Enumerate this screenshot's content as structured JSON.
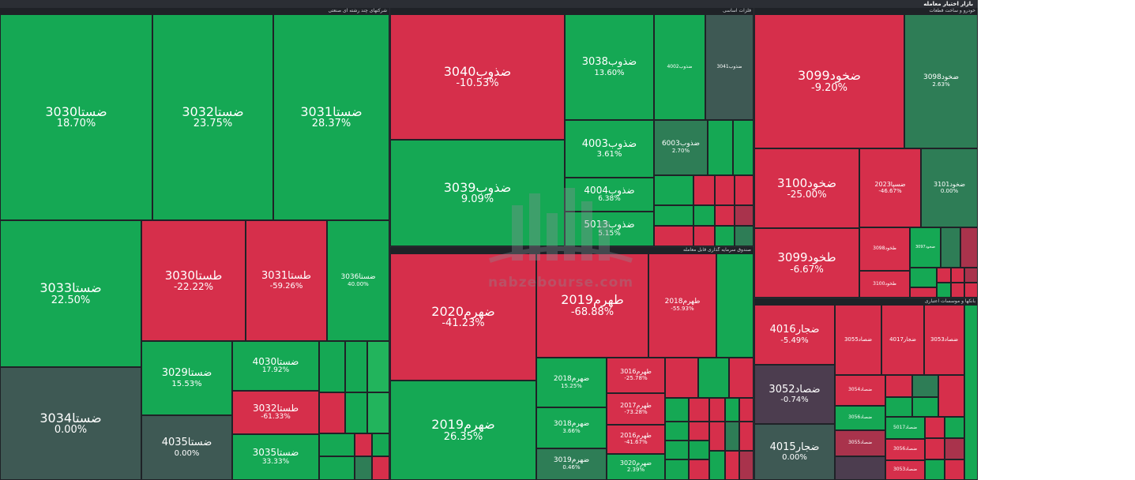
{
  "window": {
    "title": "بازار اختیار معامله"
  },
  "colors": {
    "up": "#15a854",
    "down": "#d62f4b",
    "neutral": "#3e5954"
  },
  "sectors": [
    {
      "label": "شرکتهای چند رشته ای صنعتی"
    },
    {
      "label": "فلزات اساسی"
    },
    {
      "label": "خودرو و ساخت قطعات"
    },
    {
      "label": "صندوق سرمایه گذاری قابل معامله"
    },
    {
      "label": "بانکها و موسسات اعتباری"
    }
  ],
  "tiles": [
    {
      "n": "ضستا3030",
      "p": "18.70%"
    },
    {
      "n": "ضستا3032",
      "p": "23.75%"
    },
    {
      "n": "ضستا3031",
      "p": "28.37%"
    },
    {
      "n": "ضستا3033",
      "p": "22.50%"
    },
    {
      "n": "طستا3030",
      "p": "-22.22%"
    },
    {
      "n": "طستا3031",
      "p": "-59.26%"
    },
    {
      "n": "ضستا3036",
      "p": "40.00%"
    },
    {
      "n": "ضستا3034",
      "p": "0.00%"
    },
    {
      "n": "ضستا3029",
      "p": "15.53%"
    },
    {
      "n": "ضستا4030",
      "p": "17.92%"
    },
    {
      "n": "طستا3032",
      "p": "-61.33%"
    },
    {
      "n": "ضستا4035",
      "p": "0.00%"
    },
    {
      "n": "ضستا3035",
      "p": "33.33%"
    },
    {
      "n": "ضذوب3040",
      "p": "-10.53%"
    },
    {
      "n": "ضذوب3038",
      "p": "13.60%"
    },
    {
      "n": "ضذوب4002",
      "p": ""
    },
    {
      "n": "ضذوب3041",
      "p": ""
    },
    {
      "n": "ضذوب3039",
      "p": "9.09%"
    },
    {
      "n": "ضذوب4003",
      "p": "3.61%"
    },
    {
      "n": "ضذوب6003",
      "p": "2.70%"
    },
    {
      "n": "ضذوب4004",
      "p": "6.38%"
    },
    {
      "n": "ضذوب5013",
      "p": "5.15%"
    },
    {
      "n": "ضخود3099",
      "p": "-9.20%"
    },
    {
      "n": "ضخود3098",
      "p": "2.63%"
    },
    {
      "n": "ضخود3100",
      "p": "-25.00%"
    },
    {
      "n": "ضسپا2023",
      "p": "-46.67%"
    },
    {
      "n": "ضخود3101",
      "p": "0.00%"
    },
    {
      "n": "طخود3099",
      "p": "-6.67%"
    },
    {
      "n": "طخود3098",
      "p": ""
    },
    {
      "n": "ضخود3097",
      "p": ""
    },
    {
      "n": "طخود3100",
      "p": ""
    },
    {
      "n": "ضهرم2020",
      "p": "-41.23%"
    },
    {
      "n": "طهرم2019",
      "p": "-68.88%"
    },
    {
      "n": "طهرم2018",
      "p": "-55.93%"
    },
    {
      "n": "ضهرم2019",
      "p": "26.35%"
    },
    {
      "n": "ضهرم2018",
      "p": "15.25%"
    },
    {
      "n": "طهرم3016",
      "p": "-25.78%"
    },
    {
      "n": "ضهرم3018",
      "p": "3.66%"
    },
    {
      "n": "طهرم2017",
      "p": "-73.28%"
    },
    {
      "n": "طهرم2016",
      "p": "-41.67%"
    },
    {
      "n": "ضهرم3019",
      "p": "0.46%"
    },
    {
      "n": "ضهرم3020",
      "p": "2.39%"
    },
    {
      "n": "ضجار4016",
      "p": "-5.49%"
    },
    {
      "n": "ضصاد3055",
      "p": ""
    },
    {
      "n": "ضجار4017",
      "p": ""
    },
    {
      "n": "ضصاد3053",
      "p": ""
    },
    {
      "n": "ضصاد3052",
      "p": "-0.74%"
    },
    {
      "n": "ضجار4015",
      "p": "0.00%"
    },
    {
      "n": "ضصاد3054",
      "p": ""
    },
    {
      "n": "ضصاد3056",
      "p": ""
    },
    {
      "n": "ضصاد3055",
      "p": ""
    },
    {
      "n": "ضصاد5017",
      "p": ""
    },
    {
      "n": "ضصاد3056",
      "p": ""
    },
    {
      "n": "ضصاد3053",
      "p": ""
    }
  ],
  "watermark": {
    "text": "nabzebourse.com"
  }
}
